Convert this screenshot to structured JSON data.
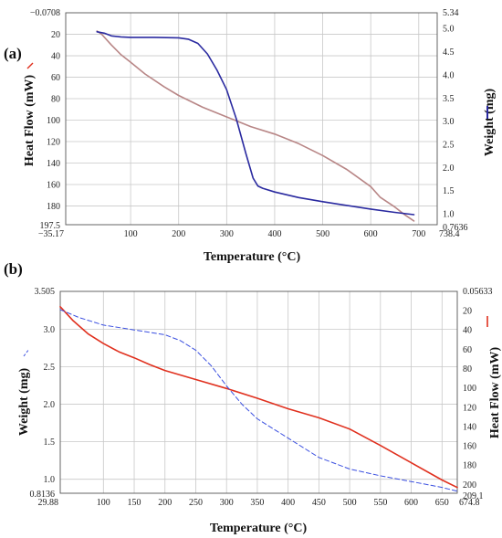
{
  "chart_data": [
    {
      "panel": "(a)",
      "type": "line",
      "xlabel": "Temperature (°C)",
      "ylabel_left": "Heat Flow (mW)",
      "ylabel_right": "Weight (mg)",
      "xlim": [
        -35.17,
        738.4
      ],
      "xticks": [
        100,
        200,
        300,
        400,
        500,
        600,
        700
      ],
      "x_edge_labels": [
        "−35.17",
        "738.4"
      ],
      "left_axis": {
        "lim": [
          -0.0708,
          197.5
        ],
        "inverted": true,
        "ticks": [
          20,
          40,
          60,
          80,
          100,
          120,
          140,
          160,
          180
        ],
        "edge_labels": [
          "−0.0708",
          "197.5"
        ]
      },
      "right_axis": {
        "lim": [
          0.7636,
          5.34
        ],
        "ticks": [
          1.0,
          1.5,
          2.0,
          2.5,
          3.0,
          3.5,
          4.0,
          4.5,
          5.0
        ],
        "tick_labels": [
          "1.0",
          "1.5",
          "2.0",
          "2.5",
          "3.0",
          "3.5",
          "4.0",
          "4.5",
          "5.0"
        ],
        "edge_labels": [
          "0.7636",
          "5.34"
        ]
      },
      "series": [
        {
          "axis": "left",
          "color": "#b88686",
          "style": "solid",
          "x": [
            30,
            40,
            60,
            80,
            100,
            130,
            170,
            200,
            250,
            300,
            350,
            400,
            450,
            500,
            550,
            600,
            620,
            650,
            670,
            690
          ],
          "y": [
            17,
            20,
            30,
            39,
            46,
            57,
            69,
            77,
            88,
            97,
            106,
            113,
            122,
            133,
            146,
            162,
            172,
            181,
            188,
            194
          ]
        },
        {
          "axis": "right",
          "color": "#2a2aa0",
          "style": "solid",
          "x": [
            30,
            45,
            60,
            80,
            100,
            150,
            200,
            220,
            240,
            260,
            280,
            300,
            320,
            340,
            355,
            365,
            375,
            400,
            450,
            500,
            550,
            600,
            650,
            690
          ],
          "y": [
            4.93,
            4.9,
            4.84,
            4.82,
            4.81,
            4.81,
            4.8,
            4.77,
            4.68,
            4.45,
            4.1,
            3.68,
            3.05,
            2.3,
            1.77,
            1.6,
            1.55,
            1.47,
            1.35,
            1.26,
            1.18,
            1.1,
            1.03,
            0.98
          ]
        }
      ]
    },
    {
      "panel": "(b)",
      "type": "line",
      "xlabel": "Temperature (°C)",
      "ylabel_left": "Weight (mg)",
      "ylabel_right": "Heat Flow (mW)",
      "xlim": [
        29.88,
        674.8
      ],
      "xticks": [
        100,
        150,
        200,
        250,
        300,
        350,
        400,
        450,
        500,
        550,
        600,
        650
      ],
      "x_edge_labels": [
        "29.88",
        "674.8"
      ],
      "left_axis": {
        "lim": [
          0.8136,
          3.505
        ],
        "ticks": [
          1.0,
          1.5,
          2.0,
          2.5,
          3.0
        ],
        "tick_labels": [
          "1.0",
          "1.5",
          "2.0",
          "2.5",
          "3.0"
        ],
        "edge_labels": [
          "0.8136",
          "3.505"
        ]
      },
      "right_axis": {
        "lim": [
          0.05633,
          209.1
        ],
        "inverted": true,
        "ticks": [
          20,
          40,
          60,
          80,
          100,
          120,
          140,
          160,
          180,
          200
        ],
        "edge_labels": [
          "0.05633",
          "209.1"
        ]
      },
      "series": [
        {
          "axis": "left",
          "color": "#e0301e",
          "style": "solid",
          "x": [
            29.88,
            50,
            75,
            100,
            125,
            150,
            175,
            200,
            250,
            300,
            350,
            400,
            450,
            500,
            550,
            600,
            650,
            674.8
          ],
          "y": [
            3.3,
            3.12,
            2.94,
            2.81,
            2.7,
            2.62,
            2.53,
            2.45,
            2.33,
            2.21,
            2.08,
            1.94,
            1.82,
            1.67,
            1.45,
            1.22,
            0.99,
            0.89
          ]
        },
        {
          "axis": "right",
          "color": "#3a4fe0",
          "style": "dashed",
          "x": [
            29.88,
            60,
            100,
            150,
            200,
            225,
            250,
            275,
            300,
            325,
            350,
            375,
            400,
            450,
            500,
            550,
            600,
            650,
            674.8
          ],
          "y": [
            19,
            27,
            35,
            40,
            45,
            51,
            61,
            77,
            98,
            117,
            132,
            142,
            152,
            172,
            184,
            191,
            197,
            203,
            207
          ]
        }
      ]
    }
  ]
}
